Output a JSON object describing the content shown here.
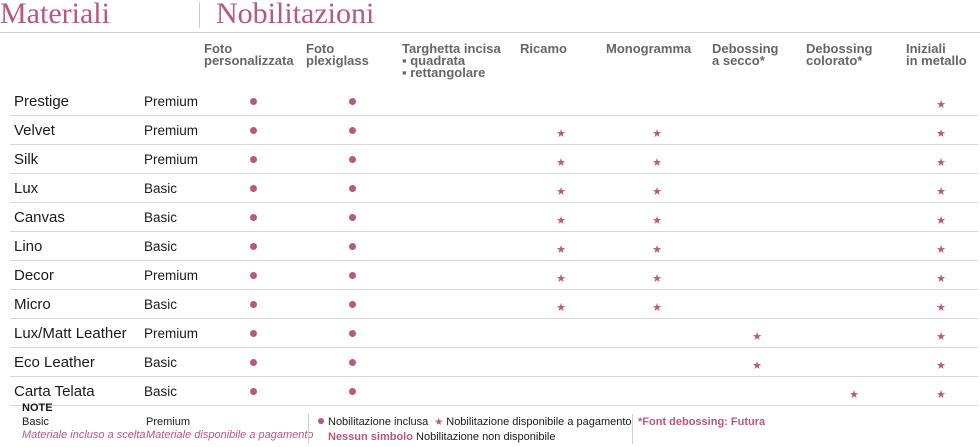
{
  "headings": {
    "materials": "Materiali",
    "finishes": "Nobilitazioni"
  },
  "columns": [
    [
      "Foto",
      "personalizzata"
    ],
    [
      "Foto",
      "plexiglass"
    ],
    [
      "Targhetta incisa",
      "▪ quadrata",
      "▪ rettangolare"
    ],
    [
      "Ricamo"
    ],
    [
      "Monogramma"
    ],
    [
      "Debossing",
      "a secco*"
    ],
    [
      "Debossing",
      "colorato*"
    ],
    [
      "Iniziali",
      "in metallo"
    ]
  ],
  "rows": [
    {
      "material": "Prestige",
      "level": "Premium",
      "cells": [
        "dot",
        "dot",
        "",
        "",
        "",
        "",
        "",
        "star"
      ]
    },
    {
      "material": "Velvet",
      "level": "Premium",
      "cells": [
        "dot",
        "dot",
        "",
        "star",
        "star",
        "",
        "",
        "star"
      ]
    },
    {
      "material": "Silk",
      "level": "Premium",
      "cells": [
        "dot",
        "dot",
        "",
        "star",
        "star",
        "",
        "",
        "star"
      ]
    },
    {
      "material": "Lux",
      "level": "Basic",
      "cells": [
        "dot",
        "dot",
        "",
        "star",
        "star",
        "",
        "",
        "star"
      ]
    },
    {
      "material": "Canvas",
      "level": "Basic",
      "cells": [
        "dot",
        "dot",
        "",
        "star",
        "star",
        "",
        "",
        "star"
      ]
    },
    {
      "material": "Lino",
      "level": "Basic",
      "cells": [
        "dot",
        "dot",
        "",
        "star",
        "star",
        "",
        "",
        "star"
      ]
    },
    {
      "material": "Decor",
      "level": "Premium",
      "cells": [
        "dot",
        "dot",
        "",
        "star",
        "star",
        "",
        "",
        "star"
      ]
    },
    {
      "material": "Micro",
      "level": "Basic",
      "cells": [
        "dot",
        "dot",
        "",
        "star",
        "star",
        "",
        "",
        "star"
      ]
    },
    {
      "material": "Lux/Matt Leather",
      "level": "Premium",
      "cells": [
        "dot",
        "dot",
        "",
        "",
        "",
        "star",
        "",
        "star"
      ]
    },
    {
      "material": "Eco Leather",
      "level": "Basic",
      "cells": [
        "dot",
        "dot",
        "",
        "",
        "",
        "star",
        "",
        "star"
      ]
    },
    {
      "material": "Carta Telata",
      "level": "Basic",
      "cells": [
        "dot",
        "dot",
        "",
        "",
        "",
        "",
        "star",
        "star"
      ]
    }
  ],
  "notes": {
    "label": "NOTE",
    "basic": "Basic",
    "basic_desc": "Materiale incluso a scelta",
    "premium": "Premium",
    "premium_desc": "Materiale disponibile a pagamento",
    "legend_included": "Nobilitazione inclusa",
    "legend_paid": "Nobilitazione disponibile a pagamento",
    "legend_none_label": "Nessun simbolo",
    "legend_none": "Nobilitazione non disponibile",
    "font_note": "*Font debossing: Futura"
  },
  "colors": {
    "accent": "#b9577f",
    "rule": "#d7d7d7"
  }
}
